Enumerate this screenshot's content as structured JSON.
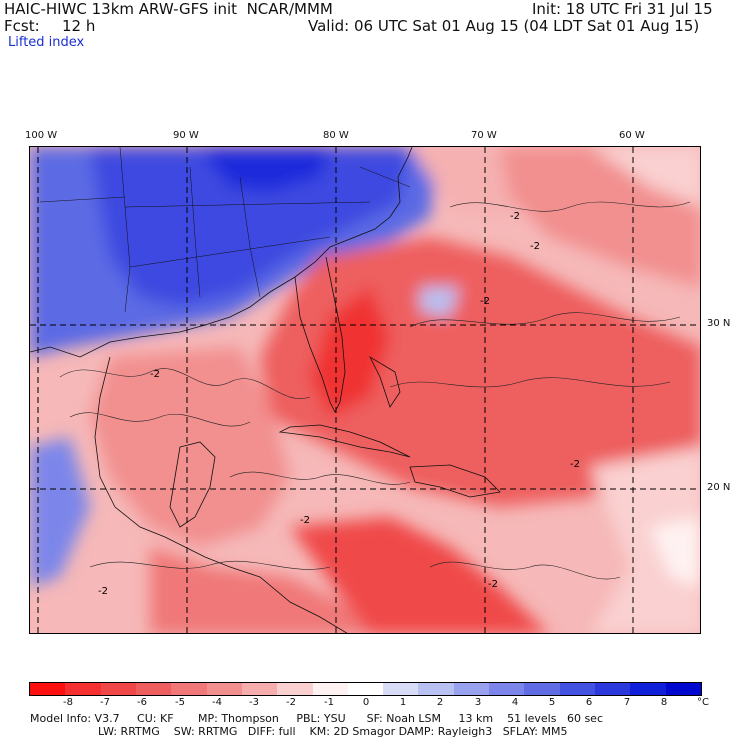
{
  "header": {
    "title": "HAIC-HIWC 13km ARW-GFS init  NCAR/MMM",
    "fcst_label": "Fcst:",
    "fcst_value": "12 h",
    "variable": "Lifted index",
    "init": "Init: 18 UTC Fri 31 Jul 15",
    "valid": "Valid: 06 UTC Sat 01 Aug 15 (04 LDT Sat 01 Aug 15)"
  },
  "map": {
    "lon_labels": [
      "100 W",
      "90 W",
      "80 W",
      "70 W",
      "60 W"
    ],
    "lat_labels": [
      "30 N",
      "20 N"
    ],
    "contour_labels": [
      "-2",
      "-2",
      "-2",
      "-2",
      "-2",
      "-2",
      "-2",
      "-2"
    ]
  },
  "colorbar": {
    "ticks": [
      "-8",
      "-7",
      "-6",
      "-5",
      "-4",
      "-3",
      "-2",
      "-1",
      "0",
      "1",
      "2",
      "3",
      "4",
      "5",
      "6",
      "7",
      "8"
    ],
    "unit": "°C",
    "colors": [
      "#ff1010",
      "#f53030",
      "#f04848",
      "#ee5e5e",
      "#f07878",
      "#f28f8f",
      "#f6adad",
      "#fad0d0",
      "#fff2f2",
      "#ffffff",
      "#d8dcf6",
      "#b9c0f2",
      "#98a2ee",
      "#7c86ea",
      "#5f6ce4",
      "#4352e0",
      "#2a38dc",
      "#1020d8",
      "#0008d0"
    ]
  },
  "footer": {
    "line1": "Model Info: V3.7     CU: KF       MP: Thompson     PBL: YSU      SF: Noah LSM     13 km    51 levels   60 sec",
    "line2": "LW: RRTMG    SW: RRTMG   DIFF: full    KM: 2D Smagor DAMP: Rayleigh3   SFLAY: MM5"
  }
}
